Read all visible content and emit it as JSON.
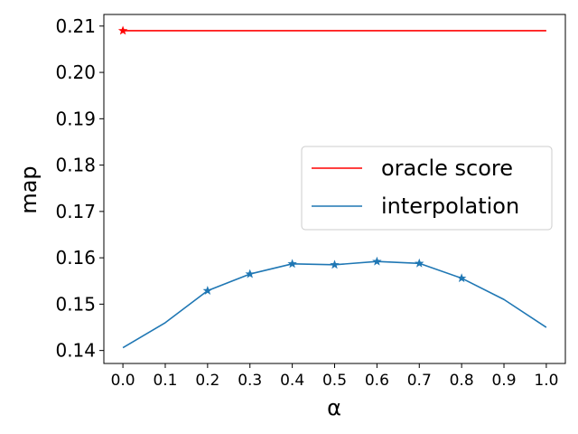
{
  "chart_data": {
    "type": "line",
    "title": "",
    "xlabel": "α",
    "ylabel": "map",
    "xlim": [
      -0.045,
      1.045
    ],
    "ylim": [
      0.1372,
      0.2125
    ],
    "x_ticks": [
      0.0,
      0.1,
      0.2,
      0.3,
      0.4,
      0.5,
      0.6,
      0.7,
      0.8,
      0.9,
      1.0
    ],
    "x_tick_labels": [
      "0.0",
      "0.1",
      "0.2",
      "0.3",
      "0.4",
      "0.5",
      "0.6",
      "0.7",
      "0.8",
      "0.9",
      "1.0"
    ],
    "y_ticks": [
      0.14,
      0.15,
      0.16,
      0.17,
      0.18,
      0.19,
      0.2,
      0.21
    ],
    "y_tick_labels": [
      "0.14",
      "0.15",
      "0.16",
      "0.17",
      "0.18",
      "0.19",
      "0.20",
      "0.21"
    ],
    "grid": false,
    "legend_position": "center-right",
    "series": [
      {
        "name": "oracle score",
        "color": "#ff0000",
        "x": [
          0.0,
          1.0
        ],
        "y": [
          0.209,
          0.209
        ],
        "marker": "star",
        "marker_x": [
          0.0
        ],
        "marker_y": [
          0.209
        ]
      },
      {
        "name": "interpolation",
        "color": "#1f77b4",
        "x": [
          0.0,
          0.1,
          0.2,
          0.3,
          0.4,
          0.5,
          0.6,
          0.7,
          0.8,
          0.9,
          1.0
        ],
        "y": [
          0.1406,
          0.146,
          0.1529,
          0.1565,
          0.1587,
          0.1585,
          0.1592,
          0.1588,
          0.1556,
          0.151,
          0.145
        ],
        "marker": "star",
        "marker_x": [
          0.2,
          0.3,
          0.4,
          0.5,
          0.6,
          0.7,
          0.8
        ],
        "marker_y": [
          0.1529,
          0.1565,
          0.1587,
          0.1585,
          0.1592,
          0.1588,
          0.1556
        ]
      }
    ]
  }
}
